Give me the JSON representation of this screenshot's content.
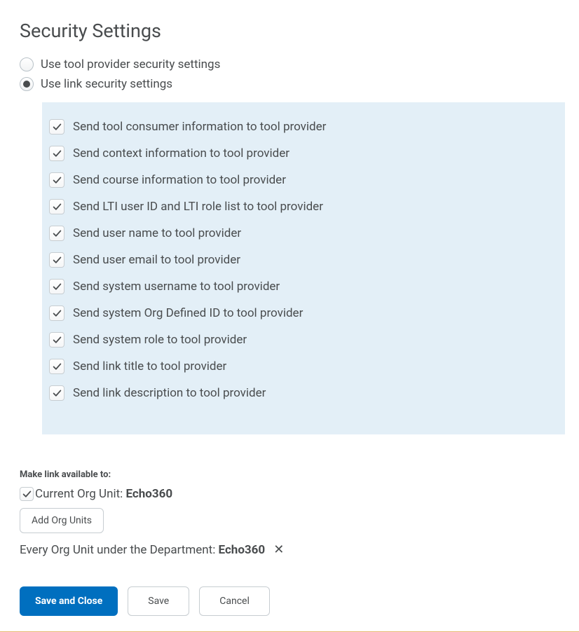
{
  "title": "Security Settings",
  "radios": {
    "provider": {
      "label": "Use tool provider security settings",
      "selected": false
    },
    "link": {
      "label": "Use link security settings",
      "selected": true
    }
  },
  "checkboxes": [
    {
      "label": "Send tool consumer information to tool provider",
      "checked": true
    },
    {
      "label": "Send context information to tool provider",
      "checked": true
    },
    {
      "label": "Send course information to tool provider",
      "checked": true
    },
    {
      "label": "Send LTI user ID and LTI role list to tool provider",
      "checked": true
    },
    {
      "label": "Send user name to tool provider",
      "checked": true
    },
    {
      "label": "Send user email to tool provider",
      "checked": true
    },
    {
      "label": "Send system username to tool provider",
      "checked": true
    },
    {
      "label": "Send system Org Defined ID to tool provider",
      "checked": true
    },
    {
      "label": "Send system role to tool provider",
      "checked": true
    },
    {
      "label": "Send link title to tool provider",
      "checked": true
    },
    {
      "label": "Send link description to tool provider",
      "checked": true
    }
  ],
  "availability": {
    "section_label": "Make link available to:",
    "current_org": {
      "prefix": "Current Org Unit: ",
      "name": "Echo360",
      "checked": true
    },
    "add_button": "Add Org Units",
    "every_org": {
      "prefix": "Every Org Unit under the Department: ",
      "name": "Echo360"
    }
  },
  "buttons": {
    "save_close": "Save and Close",
    "save": "Save",
    "cancel": "Cancel"
  },
  "colors": {
    "panel_bg": "#e3eff7",
    "primary_btn": "#006fbf",
    "text": "#494c4e",
    "border": "#c7cdd1",
    "rule": "#e6b873"
  }
}
